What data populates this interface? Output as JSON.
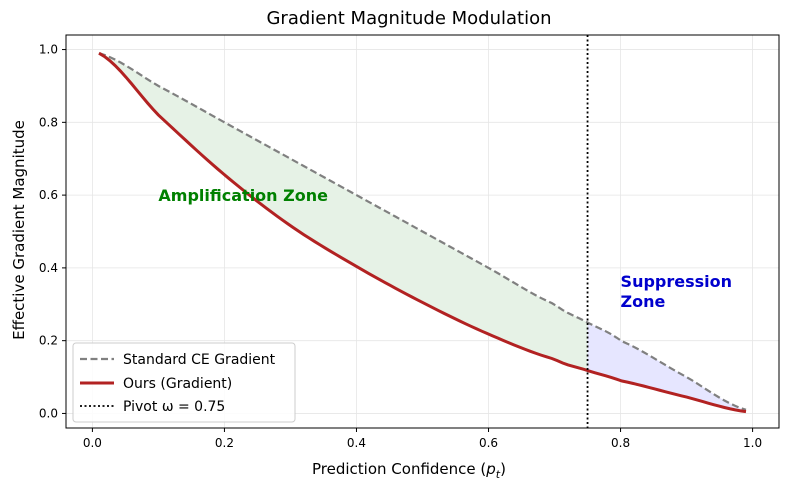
{
  "chart_data": {
    "type": "line",
    "title": "Gradient Magnitude Modulation",
    "xlabel": "Prediction Confidence (p_t)",
    "ylabel": "Effective Gradient Magnitude",
    "xlim": [
      -0.04,
      1.04
    ],
    "ylim": [
      -0.04,
      1.04
    ],
    "grid": true,
    "x_ticks": [
      0.0,
      0.2,
      0.4,
      0.6,
      0.8,
      1.0
    ],
    "x_tick_labels": [
      "0.0",
      "0.2",
      "0.4",
      "0.6",
      "0.8",
      "1.0"
    ],
    "y_ticks": [
      0.0,
      0.2,
      0.4,
      0.6,
      0.8,
      1.0
    ],
    "y_tick_labels": [
      "0.0",
      "0.2",
      "0.4",
      "0.6",
      "0.8",
      "1.0"
    ],
    "pivot": 0.75,
    "series": [
      {
        "name": "Standard CE Gradient",
        "color": "#808080",
        "style": "dashed",
        "x": [
          0.01,
          0.1,
          0.2,
          0.3,
          0.4,
          0.5,
          0.6,
          0.7,
          0.75,
          0.8,
          0.9,
          0.99
        ],
        "values": [
          0.99,
          0.9,
          0.8,
          0.7,
          0.6,
          0.5,
          0.4,
          0.3,
          0.25,
          0.2,
          0.1,
          0.01
        ]
      },
      {
        "name": "Ours (Gradient)",
        "color": "#b22222",
        "style": "solid",
        "x": [
          0.01,
          0.1,
          0.2,
          0.3,
          0.4,
          0.5,
          0.6,
          0.7,
          0.75,
          0.8,
          0.9,
          0.99
        ],
        "values": [
          0.99,
          0.82,
          0.656,
          0.516,
          0.404,
          0.305,
          0.218,
          0.149,
          0.118,
          0.09,
          0.045,
          0.005
        ]
      }
    ],
    "legend": {
      "position": "lower-left",
      "entries": [
        "Standard CE Gradient",
        "Ours (Gradient)",
        "Pivot ω = 0.75"
      ]
    },
    "annotations": [
      {
        "text": "Amplification Zone",
        "x": 0.1,
        "y": 0.6,
        "color": "#008000"
      },
      {
        "text_line1": "Suppression",
        "text_line2": "Zone",
        "x": 0.8,
        "y": 0.35,
        "color": "#0000cd"
      }
    ],
    "fill_colors": {
      "amplification": "#e6f2e6",
      "suppression": "#e6e6ff"
    }
  }
}
